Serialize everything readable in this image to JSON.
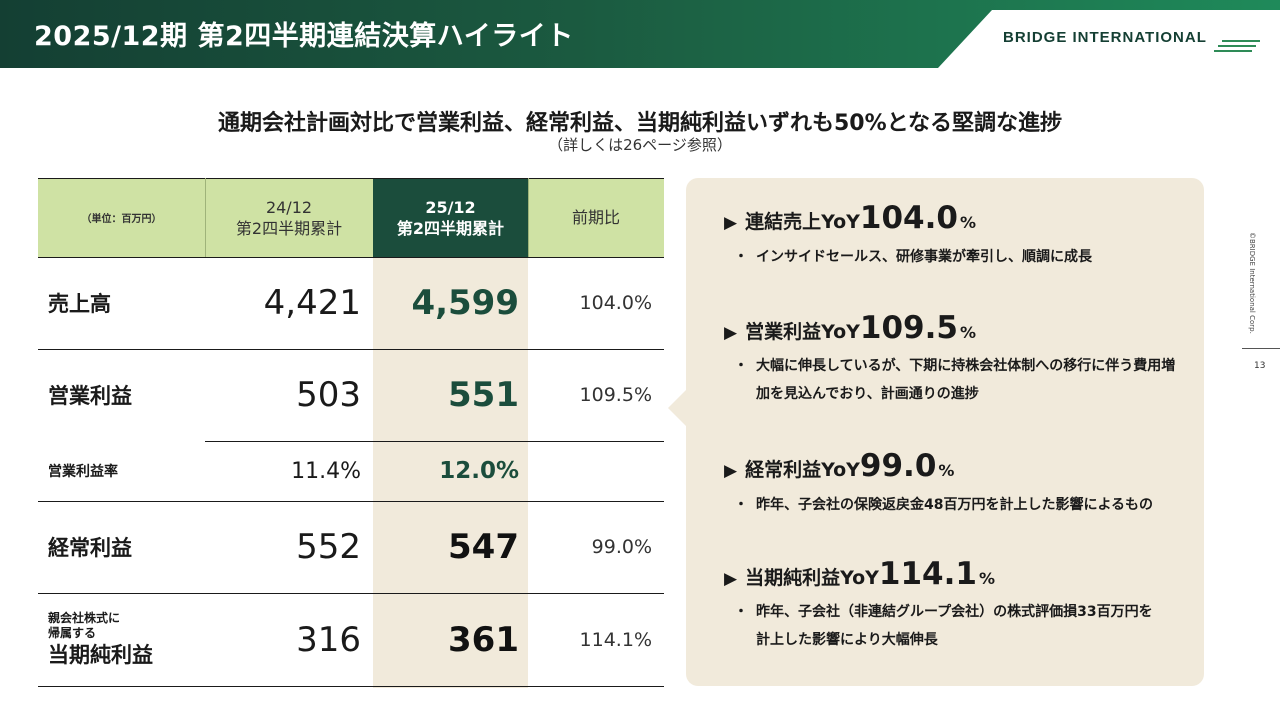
{
  "header": {
    "title": "2025/12期 第2四半期連結決算ハイライト",
    "logo": "BRIDGE INTERNATIONAL"
  },
  "headline": "通期会社計画対比で営業利益、経常利益、当期純利益いずれも50%となる堅調な進捗",
  "subline": "（詳しくは26ページ参照）",
  "table": {
    "unit": "（単位：百万円）",
    "col_prev_line1": "24/12",
    "col_prev_line2": "第2四半期累計",
    "col_curr_line1": "25/12",
    "col_curr_line2": "第2四半期累計",
    "col_yoy": "前期比",
    "rows": [
      {
        "label": "売上高",
        "prev": "4,421",
        "curr": "4,599",
        "yoy": "104.0%"
      },
      {
        "label": "営業利益",
        "prev": "503",
        "curr": "551",
        "yoy": "109.5%"
      },
      {
        "label": "営業利益率",
        "prev": "11.4%",
        "curr": "12.0%",
        "yoy": ""
      },
      {
        "label": "経常利益",
        "prev": "552",
        "curr": "547",
        "yoy": "99.0%"
      },
      {
        "label_line1": "親会社株式に",
        "label_line2": "帰属する",
        "label": "当期純利益",
        "prev": "316",
        "curr": "361",
        "yoy": "114.1%"
      }
    ]
  },
  "highlights": [
    {
      "marker": "▶",
      "name": "連結売上YoY",
      "value": "104.0",
      "unit": "%",
      "bullet": "・",
      "lines": [
        "インサイドセールス、研修事業が牽引し、順調に成長"
      ]
    },
    {
      "marker": "▶",
      "name": "営業利益YoY",
      "value": "109.5",
      "unit": "%",
      "bullet": "・",
      "lines": [
        "大幅に伸長しているが、下期に持株会社体制への移行に伴う費用増",
        "加を見込んでおり、計画通りの進捗"
      ]
    },
    {
      "marker": "▶",
      "name": "経常利益YoY",
      "value": "99.0",
      "unit": "%",
      "bullet": "・",
      "lines": [
        "昨年、子会社の保険返戻金48百万円を計上した影響によるもの"
      ]
    },
    {
      "marker": "▶",
      "name": "当期純利益YoY",
      "value": "114.1",
      "unit": "%",
      "bullet": "・",
      "lines": [
        "昨年、子会社（非連結グループ会社）の株式評価損33百万円を",
        "計上した影響により大幅伸長"
      ]
    }
  ],
  "side": {
    "copyright": "©BRIDGE International Corp.",
    "page": "13"
  }
}
